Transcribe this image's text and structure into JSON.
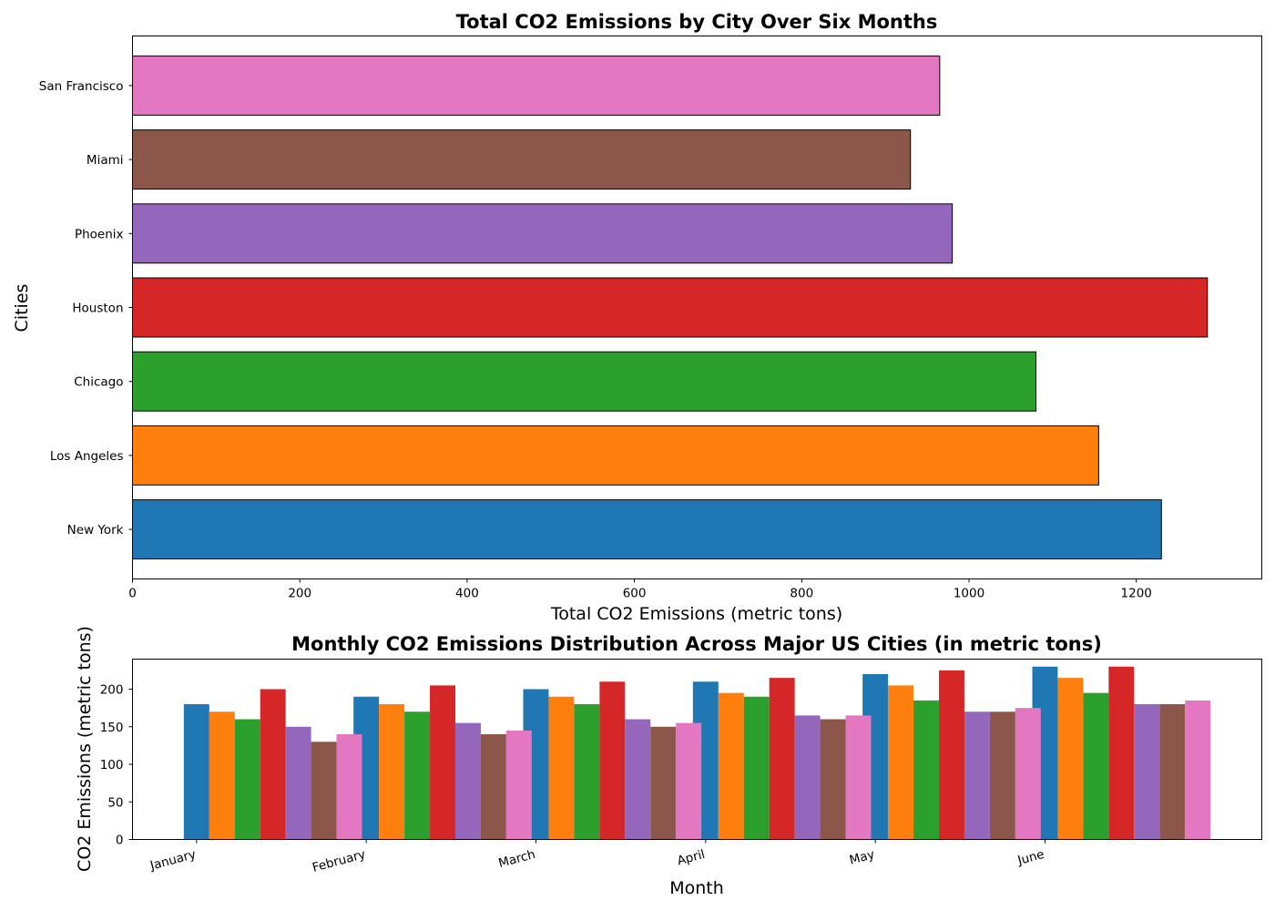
{
  "chart_data": [
    {
      "type": "bar",
      "orientation": "horizontal",
      "title": "Total CO2 Emissions by City Over Six Months",
      "xlabel": "Total CO2 Emissions (metric tons)",
      "ylabel": "Cities",
      "categories": [
        "New York",
        "Los Angeles",
        "Chicago",
        "Houston",
        "Phoenix",
        "Miami",
        "San Francisco"
      ],
      "values": [
        1230,
        1155,
        1080,
        1285,
        980,
        930,
        965
      ],
      "colors": [
        "#1f77b4",
        "#ff7f0e",
        "#2ca02c",
        "#d62728",
        "#9467bd",
        "#8c564b",
        "#e377c2"
      ],
      "xlim": [
        0,
        1350
      ],
      "xticks": [
        0,
        200,
        400,
        600,
        800,
        1000,
        1200
      ],
      "grid": false,
      "bar_edgecolor": "#000000"
    },
    {
      "type": "bar",
      "orientation": "vertical",
      "grouped": true,
      "title": "Monthly CO2 Emissions Distribution Across Major US Cities (in metric tons)",
      "xlabel": "Month",
      "ylabel": "CO2 Emissions (metric tons)",
      "categories": [
        "January",
        "February",
        "March",
        "April",
        "May",
        "June"
      ],
      "series": [
        {
          "color": "#1f77b4",
          "values": [
            180,
            190,
            200,
            210,
            220,
            230
          ]
        },
        {
          "color": "#ff7f0e",
          "values": [
            170,
            180,
            190,
            195,
            205,
            215
          ]
        },
        {
          "color": "#2ca02c",
          "values": [
            160,
            170,
            180,
            190,
            185,
            195
          ]
        },
        {
          "color": "#d62728",
          "values": [
            200,
            205,
            210,
            215,
            225,
            230
          ]
        },
        {
          "color": "#9467bd",
          "values": [
            150,
            155,
            160,
            165,
            170,
            180
          ]
        },
        {
          "color": "#8c564b",
          "values": [
            130,
            140,
            150,
            160,
            170,
            180
          ]
        },
        {
          "color": "#e377c2",
          "values": [
            140,
            145,
            155,
            165,
            175,
            185
          ]
        }
      ],
      "ylim": [
        0,
        240
      ],
      "yticks": [
        0,
        50,
        100,
        150,
        200
      ],
      "grid": false
    }
  ]
}
